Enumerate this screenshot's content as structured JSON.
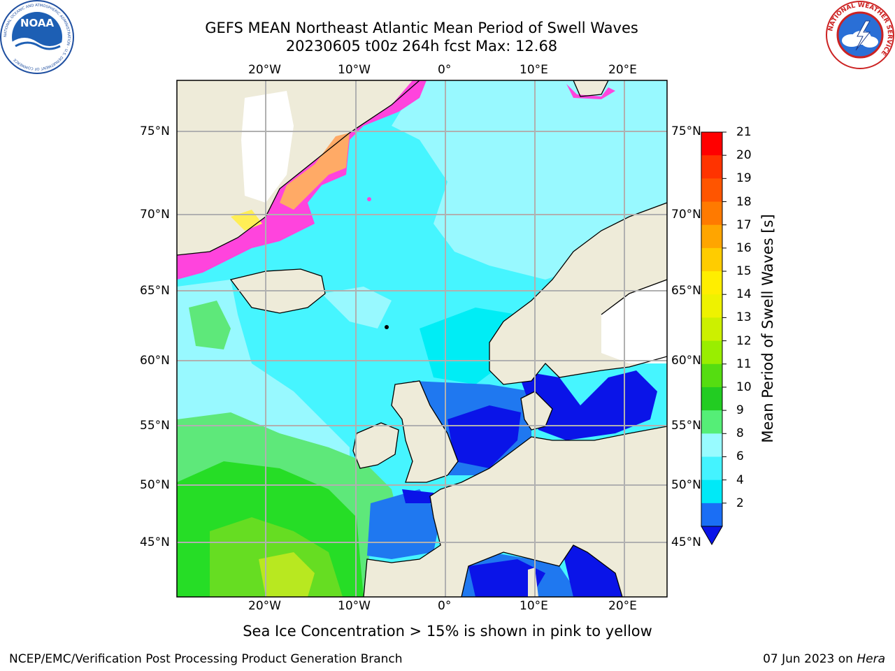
{
  "header": {
    "title_line1": "GEFS MEAN Northeast Atlantic Mean Period of Swell Waves",
    "title_line2": "20230605 t00z 264h fcst   Max: 12.68"
  },
  "logos": {
    "noaa_text": "NOAA",
    "noaa_ring_text": "NATIONAL OCEANIC AND ATMOSPHERIC ADMINISTRATION · U.S. DEPARTMENT OF COMMERCE",
    "nws_ring_text": "NATIONAL WEATHER SERVICE"
  },
  "map": {
    "lon_labels_top": [
      "20°W",
      "10°W",
      "0°",
      "10°E",
      "20°E"
    ],
    "lon_labels_bottom": [
      "20°W",
      "10°W",
      "0°",
      "10°E",
      "20°E"
    ],
    "lat_labels_left": [
      "75°N",
      "70°N",
      "65°N",
      "60°N",
      "55°N",
      "50°N",
      "45°N"
    ],
    "lat_labels_right": [
      "75°N",
      "70°N",
      "65°N",
      "60°N",
      "55°N",
      "50°N",
      "45°N"
    ],
    "colors": {
      "land": "#eeebd9",
      "ocean_6_8": "#46f5ff",
      "ocean_8_9": "#98f9ff",
      "ocean_4_6": "#00edf5",
      "ocean_2_4": "#1f78f0",
      "ocean_lt2": "#0a14e8",
      "green_9_10": "#5ee87a",
      "green_10_11": "#26dd26",
      "green_11_12": "#66dd22",
      "yellowgreen_12_13": "#b8e820",
      "ice_pink": "#ff44dd",
      "ice_orange": "#ffaa66",
      "ice_yellow": "#ffee55"
    }
  },
  "colorbar": {
    "ticks": [
      "21",
      "20",
      "19",
      "18",
      "17",
      "16",
      "15",
      "14",
      "13",
      "12",
      "11",
      "10",
      "9",
      "8",
      "6",
      "4",
      "2"
    ],
    "bands": [
      "#ff0000",
      "#ff3300",
      "#ff5500",
      "#ff7a00",
      "#ffa500",
      "#ffcc00",
      "#ffee00",
      "#eef200",
      "#ccf000",
      "#99ee00",
      "#55dd11",
      "#22cc22",
      "#55ee77",
      "#98fbff",
      "#44f3ff",
      "#00e9f7",
      "#1a6ef5"
    ],
    "extend_color": "#0a14e8",
    "label": "Mean Period of Swell Waves [s]"
  },
  "footer": {
    "note": "Sea Ice Concentration > 15% is shown in pink to yellow",
    "left": "NCEP/EMC/Verification Post Processing Product Generation Branch",
    "right_date": "07 Jun 2023 on ",
    "right_host": "Hera"
  }
}
